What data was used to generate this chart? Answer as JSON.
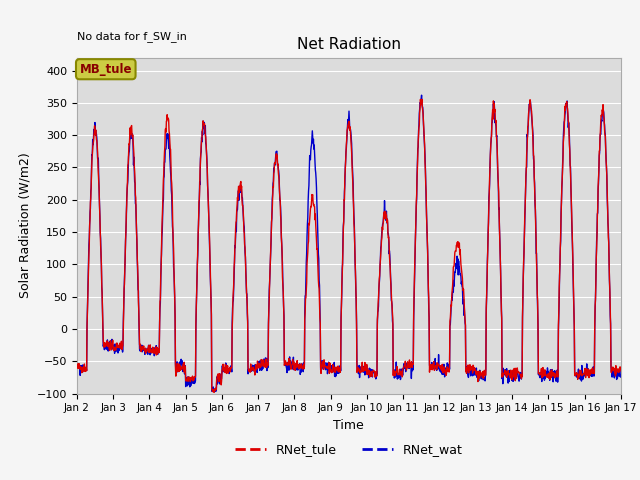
{
  "title": "Net Radiation",
  "xlabel": "Time",
  "ylabel": "Solar Radiation (W/m2)",
  "ylim": [
    -100,
    420
  ],
  "yticks": [
    -100,
    -50,
    0,
    50,
    100,
    150,
    200,
    250,
    300,
    350,
    400
  ],
  "annotation_text": "No data for f_SW_in",
  "legend_label1": "RNet_tule",
  "legend_label2": "RNet_wat",
  "legend_color1": "#dd0000",
  "legend_color2": "#0000cc",
  "box_label": "MB_tule",
  "box_facecolor": "#cccc44",
  "box_edgecolor": "#888800",
  "box_textcolor": "#880000",
  "xtick_labels": [
    "Jan 2",
    "Jan 3",
    "Jan 4",
    "Jan 5",
    "Jan 6",
    "Jan 7",
    "Jan 8",
    "Jan 9",
    "Jan 10",
    "Jan 11",
    "Jan 12",
    "Jan 13",
    "Jan 14",
    "Jan 15",
    "Jan 16",
    "Jan 17"
  ],
  "plot_bg_color": "#dcdcdc",
  "fig_bg_color": "#f5f5f5",
  "grid_color": "#ffffff",
  "line_width": 1.0,
  "num_days": 15,
  "samples_per_day": 96,
  "tule_peaks": [
    310,
    312,
    328,
    320,
    224,
    270,
    200,
    320,
    178,
    350,
    130,
    344,
    348,
    348,
    338
  ],
  "wat_peaks": [
    313,
    303,
    300,
    315,
    220,
    272,
    295,
    325,
    180,
    354,
    100,
    344,
    347,
    347,
    336
  ],
  "tule_night": [
    -60,
    -55,
    -60,
    -78,
    -62,
    -54,
    -58,
    -62,
    -68,
    -58,
    -62,
    -70,
    -70,
    -70,
    -65
  ],
  "wat_night": [
    -60,
    -55,
    -60,
    -80,
    -62,
    -55,
    -60,
    -62,
    -70,
    -58,
    -65,
    -72,
    -72,
    -72,
    -68
  ]
}
